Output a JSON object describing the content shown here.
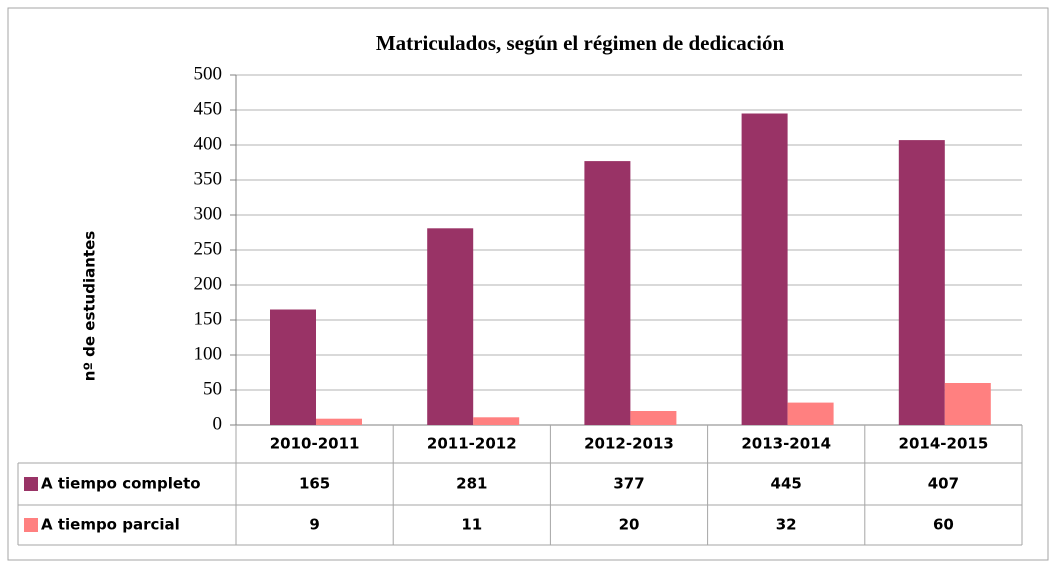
{
  "chart_data": {
    "type": "bar",
    "title": "Matriculados, según el régimen de dedicación",
    "y_label": "nº de estudiantes",
    "categories": [
      "2010-2011",
      "2011-2012",
      "2012-2013",
      "2013-2014",
      "2014-2015"
    ],
    "series": [
      {
        "name": "A tiempo completo",
        "color": "#993366",
        "values": [
          165,
          281,
          377,
          445,
          407
        ]
      },
      {
        "name": "A tiempo parcial",
        "color": "#FF8080",
        "values": [
          9,
          11,
          20,
          32,
          60
        ]
      }
    ],
    "ylim": [
      0,
      500
    ],
    "yticks": [
      0,
      50,
      100,
      150,
      200,
      250,
      300,
      350,
      400,
      450,
      500
    ],
    "grid": true
  }
}
